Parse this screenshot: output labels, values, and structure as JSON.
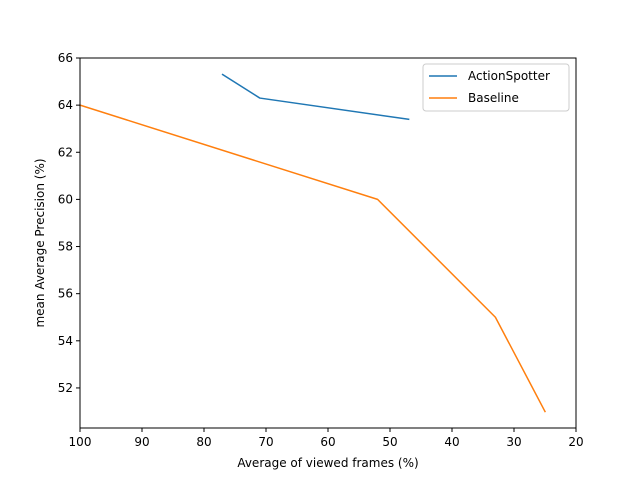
{
  "chart_data": {
    "type": "line",
    "title": "",
    "xlabel": "Average of viewed frames (%)",
    "ylabel": "mean Average Precision (%)",
    "xlim": [
      100,
      20
    ],
    "ylim": [
      50.3,
      66
    ],
    "x_inverted": true,
    "xticks": [
      100,
      90,
      80,
      70,
      60,
      50,
      40,
      30,
      20
    ],
    "yticks": [
      52,
      54,
      56,
      58,
      60,
      62,
      64,
      66
    ],
    "grid": false,
    "legend_position": "upper right",
    "series": [
      {
        "name": "ActionSpotter",
        "color": "#1f77b4",
        "x": [
          77,
          71,
          47
        ],
        "y": [
          65.3,
          64.3,
          63.4
        ]
      },
      {
        "name": "Baseline",
        "color": "#ff7f0e",
        "x": [
          100,
          52,
          33,
          25
        ],
        "y": [
          64.0,
          60.0,
          55.0,
          51.0
        ]
      }
    ]
  }
}
